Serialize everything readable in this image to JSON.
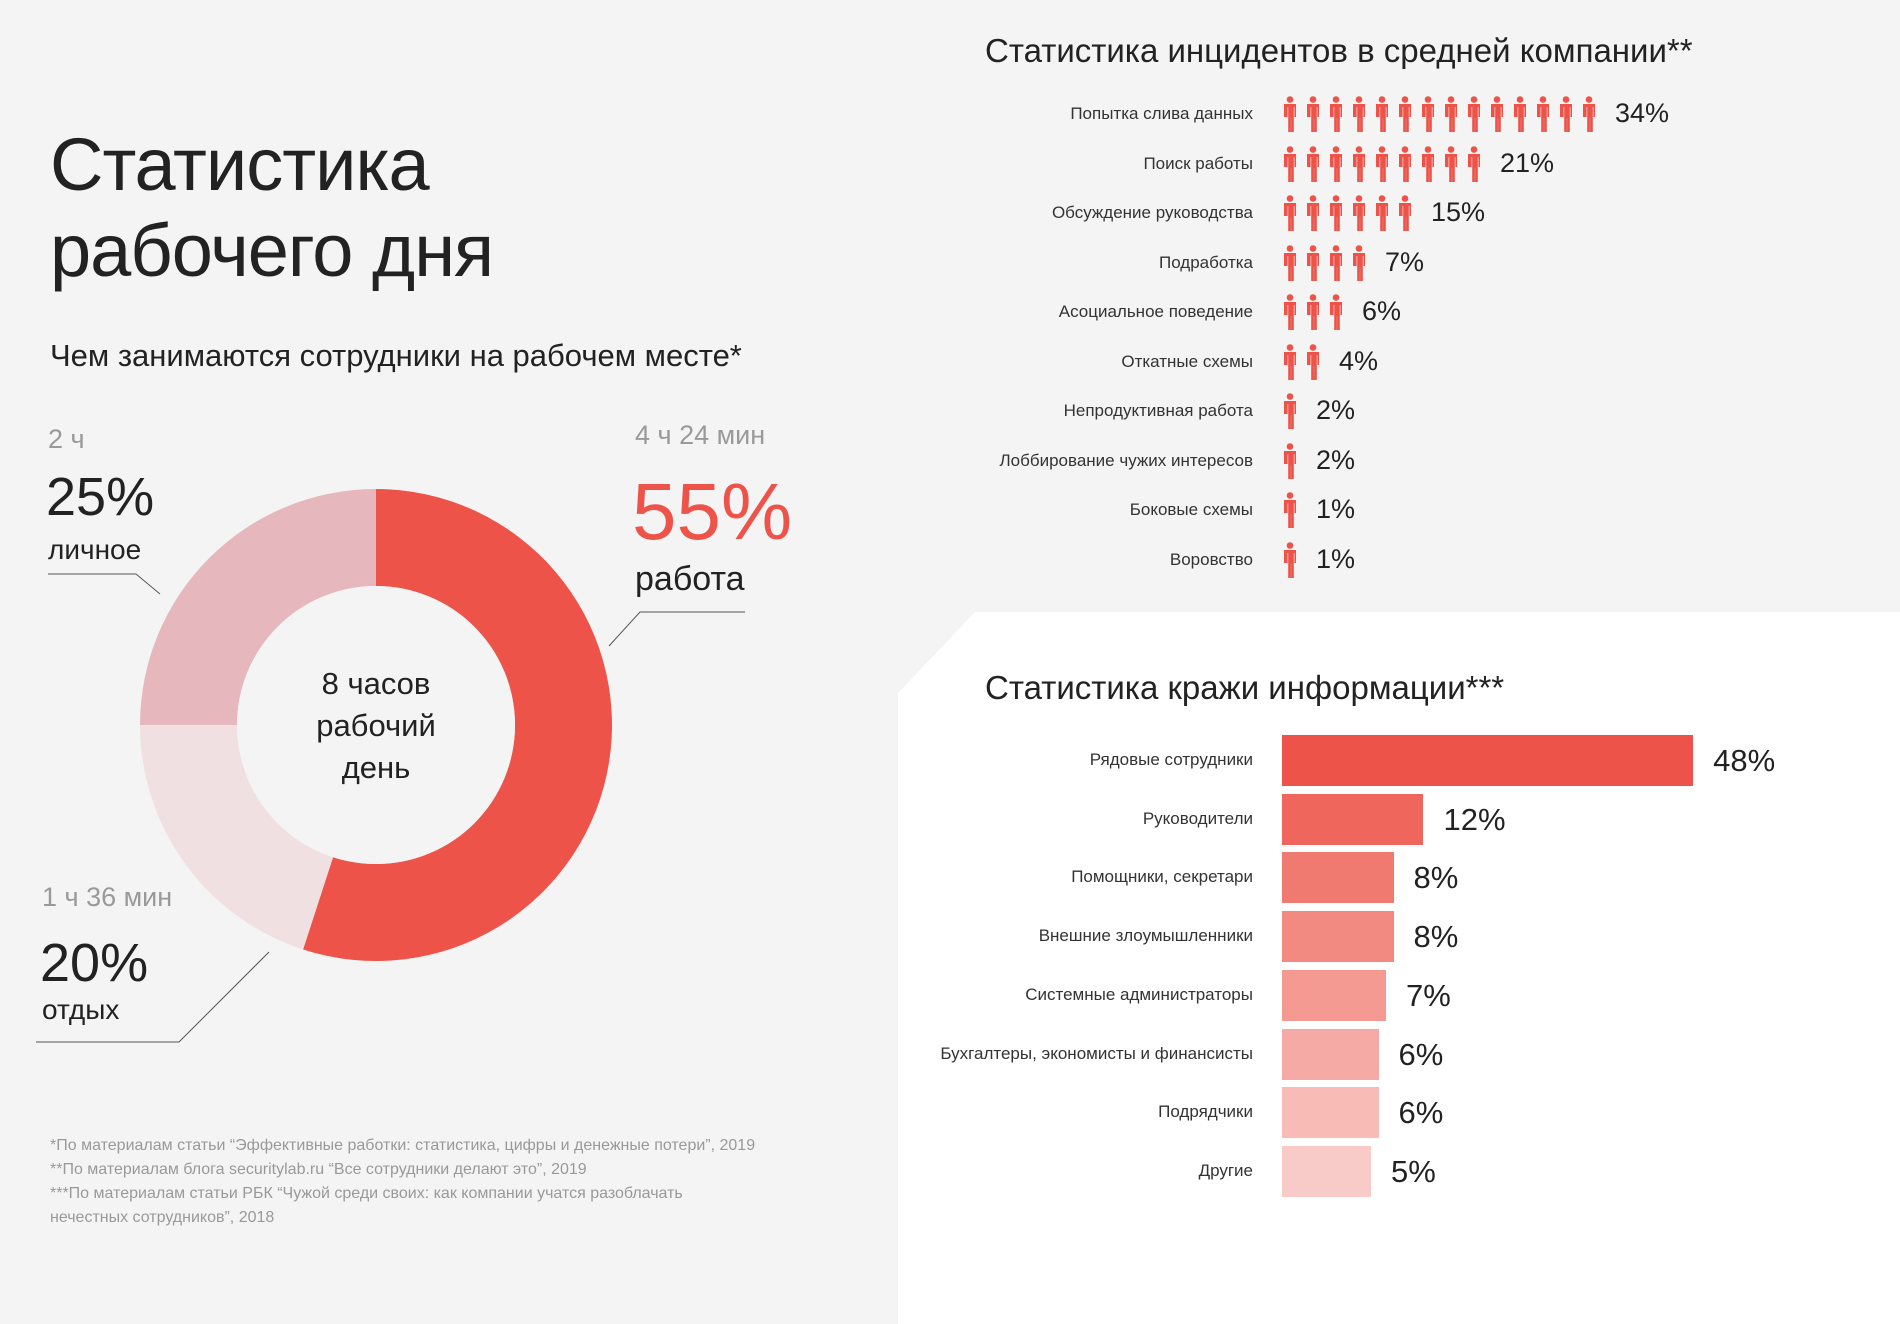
{
  "title_line1": "Статистика",
  "title_line2": "рабочего дня",
  "subtitle": "Чем занимаются сотрудники на рабочем месте*",
  "colors": {
    "accent": "#ee5349",
    "text": "#222222",
    "muted": "#999999"
  },
  "chart_data": [
    {
      "type": "pie",
      "style": "donut",
      "center_text": [
        "8 часов",
        "рабочий",
        "день"
      ],
      "slices": [
        {
          "name": "работа",
          "value": 55,
          "label": "55%",
          "duration": "4 ч 24 мин",
          "color": "#ee5349"
        },
        {
          "name": "отдых",
          "value": 20,
          "label": "20%",
          "duration": "1 ч 36 мин",
          "color": "#f0e0e2"
        },
        {
          "name": "личное",
          "value": 25,
          "label": "25%",
          "duration": "2 ч",
          "color": "#e6b8bd"
        }
      ]
    },
    {
      "type": "bar",
      "orientation": "horizontal",
      "style": "pictogram",
      "icon": "person-icon",
      "title": "Статистика инцидентов в средней компании**",
      "categories": [
        "Попытка слива данных",
        "Поиск работы",
        "Обсуждение руководства",
        "Подработка",
        "Асоциальное поведение",
        "Откатные схемы",
        "Непродуктивная работа",
        "Лоббирование чужих интересов",
        "Боковые схемы",
        "Воровство"
      ],
      "values": [
        34,
        21,
        15,
        7,
        6,
        4,
        2,
        2,
        1,
        1
      ],
      "labels": [
        "34%",
        "21%",
        "15%",
        "7%",
        "6%",
        "4%",
        "2%",
        "2%",
        "1%",
        "1%"
      ],
      "icon_counts": [
        14,
        9,
        6,
        4,
        3,
        2,
        1,
        1,
        1,
        1
      ]
    },
    {
      "type": "bar",
      "orientation": "horizontal",
      "title": "Статистика кражи информации***",
      "categories": [
        "Рядовые сотрудники",
        "Руководители",
        "Помощники, секретари",
        "Внешние злоумышленники",
        "Системные администраторы",
        "Бухгалтеры, экономисты и финансисты",
        "Подрядчики",
        "Другие"
      ],
      "values": [
        48,
        12,
        8,
        8,
        7,
        6,
        6,
        5
      ],
      "labels": [
        "48%",
        "12%",
        "8%",
        "8%",
        "7%",
        "6%",
        "6%",
        "5%"
      ],
      "colors": [
        "#ee5349",
        "#ef675c",
        "#f07a70",
        "#f38a82",
        "#f59a92",
        "#f6aaa5",
        "#f8bbb6",
        "#f9cbc8"
      ]
    }
  ],
  "footnotes": [
    "*По материалам статьи “Эффективные работки: статистика, цифры и денежные потери”, 2019",
    "**По материалам блога securitylab.ru “Все сотрудники делают это”, 2019",
    "***По материалам статьи РБК “Чужой среди своих: как компании учатся разоблачать",
    "нечестных сотрудников”, 2018"
  ]
}
